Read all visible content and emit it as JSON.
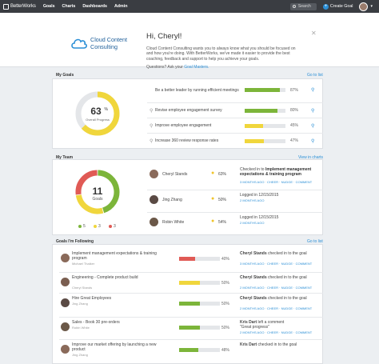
{
  "nav": {
    "brand": "BetterWorks",
    "links": [
      "Goals",
      "Charts",
      "Dashboards",
      "Admin"
    ],
    "search_placeholder": "Search",
    "create_goal": "Create Goal"
  },
  "welcome": {
    "logo_line1": "Cloud Content",
    "logo_line2": "Consulting",
    "greeting": "Hi, Cheryl!",
    "text": "Cloud Content Consulting wants you to always know what you should be focused on and how you're doing. With BetterWorks, we've made it easier to provide the best coaching, feedback and support to help you achieve your goals.",
    "question": "Questions? Ask your",
    "question_link": "Goal Masters."
  },
  "my_goals": {
    "title": "My Goals",
    "link": "Go to list",
    "overall_pct": "63",
    "overall_sym": "%",
    "overall_label": "Overall Progress",
    "overall_value": 63,
    "rows": [
      {
        "text": "Be a better leader by running efficient meetings",
        "pct": "87%",
        "value": 87,
        "color": "#7cb53a"
      },
      {
        "text": "Revise employee engagement survey",
        "pct": "80%",
        "value": 80,
        "color": "#7cb53a"
      },
      {
        "text": "Improve employee engagement",
        "pct": "45%",
        "value": 45,
        "color": "#f0d63c"
      },
      {
        "text": "Increase 360 review response rates",
        "pct": "47%",
        "value": 47,
        "color": "#f0d63c"
      }
    ]
  },
  "my_team": {
    "title": "My Team",
    "link": "View in charts",
    "count": "11",
    "count_label": "Goals",
    "segments": [
      {
        "value": 5,
        "color": "#7cb53a"
      },
      {
        "value": 3,
        "color": "#f0d63c"
      },
      {
        "value": 3,
        "color": "#e05a55"
      }
    ],
    "legend": [
      {
        "n": "5",
        "color": "#7cb53a"
      },
      {
        "n": "3",
        "color": "#f0d63c"
      },
      {
        "n": "3",
        "color": "#e05a55"
      }
    ],
    "rows": [
      {
        "name": "Cheryl Stands",
        "pct": "63%",
        "line1": "Checked in to",
        "goal": "Implement management expectations & training program",
        "meta": "3 MONTHS AGO",
        "acts": "CHEER · NUDGE · COMMENT",
        "avatar": "#8a6a5a"
      },
      {
        "name": "Jing Zhang",
        "pct": "50%",
        "line1": "Logged in 12/15/2015",
        "goal": "",
        "meta": "2 MONTHS AGO",
        "acts": "",
        "avatar": "#5a4a44"
      },
      {
        "name": "Robin White",
        "pct": "54%",
        "line1": "Logged in 12/15/2015",
        "goal": "",
        "meta": "2 MONTHS AGO",
        "acts": "",
        "avatar": "#6b5848"
      }
    ]
  },
  "following": {
    "title": "Goals I'm Following",
    "link": "Go to list",
    "rows": [
      {
        "title": "Implement management expectations & training program",
        "owner": "Michael Thaiker",
        "pct": "40%",
        "value": 40,
        "color": "#e05a55",
        "who": "Cheryl Stands",
        "act": "checked in to the goal",
        "extra": "",
        "meta": "3 MONTHS AGO",
        "acts": "CHEER · NUDGE · COMMENT",
        "avatar": "#8a6a5a"
      },
      {
        "title": "Engineering - Complete product build",
        "owner": "Cheryl Stands",
        "pct": "50%",
        "value": 50,
        "color": "#f0d63c",
        "who": "Cheryl Stands",
        "act": "checked in to the goal",
        "extra": "",
        "meta": "2 MONTHS AGO",
        "acts": "CHEER · NUDGE · COMMENT",
        "avatar": "#7a5e50"
      },
      {
        "title": "Hire Great Employees",
        "owner": "Jing Zhang",
        "pct": "50%",
        "value": 50,
        "color": "#7cb53a",
        "who": "Cheryl Stands",
        "act": "checked in to the goal",
        "extra": "",
        "meta": "2 MONTHS AGO",
        "acts": "CHEER · NUDGE · COMMENT",
        "avatar": "#5a4a44"
      },
      {
        "title": "Sales - Book 30 pre-orders",
        "owner": "Robin White",
        "pct": "50%",
        "value": 50,
        "color": "#7cb53a",
        "who": "Kris Dart",
        "act": "left a comment",
        "extra": "\"Great progress\"",
        "meta": "2 MONTHS AGO",
        "acts": "CHEER · NUDGE · COMMENT",
        "avatar": "#6b5848"
      },
      {
        "title": "Improve our market offering by launching a new product",
        "owner": "Jing Zhang",
        "pct": "48%",
        "value": 48,
        "color": "#7cb53a",
        "who": "Kris Dart",
        "act": "checked in to the goal",
        "extra": "",
        "meta": "",
        "acts": "",
        "avatar": "#8a6a5a"
      }
    ]
  }
}
